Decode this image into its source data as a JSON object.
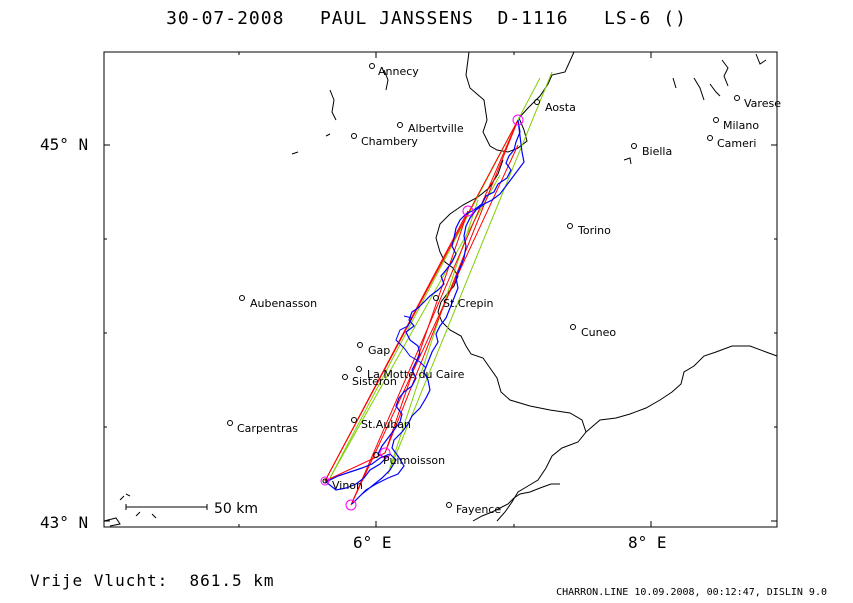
{
  "header": {
    "title": "30-07-2008   PAUL JANSSENS  D-1116   LS-6 ()"
  },
  "axes": {
    "y_labels": [
      "45° N",
      "43° N"
    ],
    "x_labels": [
      "6° E",
      "8° E"
    ]
  },
  "scale_bar": {
    "label": "50 km"
  },
  "footer": {
    "distance": "Vrije Vlucht:  861.5 km",
    "credit": "CHARRON.LINE 10.09.2008, 00:12:47, DISLIN 9.0"
  },
  "cities": [
    {
      "name": "Annecy"
    },
    {
      "name": "Albertville"
    },
    {
      "name": "Chambery"
    },
    {
      "name": "Aosta"
    },
    {
      "name": "Biella"
    },
    {
      "name": "Varese"
    },
    {
      "name": "Milano"
    },
    {
      "name": "Cameri"
    },
    {
      "name": "Torino"
    },
    {
      "name": "Aubenasson"
    },
    {
      "name": "St.Crepin"
    },
    {
      "name": "Cuneo"
    },
    {
      "name": "Gap"
    },
    {
      "name": "La Motte du Caire"
    },
    {
      "name": "Sisteron"
    },
    {
      "name": "Carpentras"
    },
    {
      "name": "St.Auban"
    },
    {
      "name": "Puimoisson"
    },
    {
      "name": "Vinon"
    },
    {
      "name": "Fayence"
    }
  ],
  "colors": {
    "track": "#0000ff",
    "legs": "#ff0000",
    "sector": "#80d000",
    "turnpoint": "#ff00ff"
  }
}
